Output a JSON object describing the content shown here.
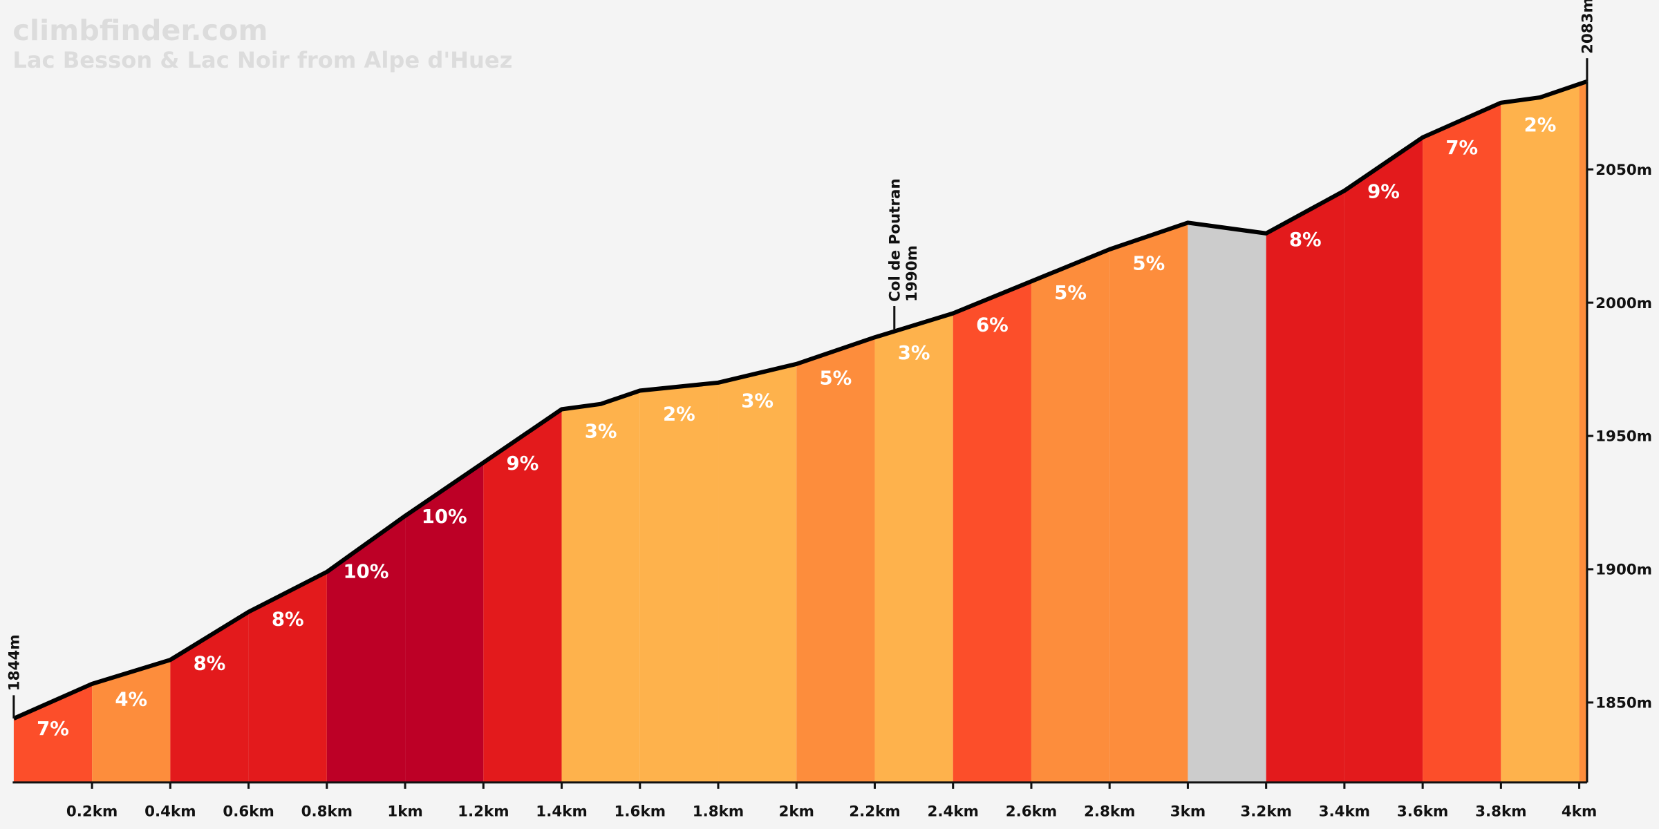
{
  "chart_data": {
    "type": "area",
    "title": "climbfinder.com",
    "subtitle": "Lac Besson & Lac Noir from Alpe d'Huez",
    "x": [
      0,
      0.2,
      0.4,
      0.6,
      0.8,
      1.0,
      1.2,
      1.4,
      1.5,
      1.6,
      1.8,
      2.0,
      2.2,
      2.4,
      2.6,
      2.8,
      3.0,
      3.2,
      3.4,
      3.6,
      3.8,
      3.9,
      4.02
    ],
    "elevations": [
      1844,
      1857,
      1866,
      1884,
      1899,
      1920,
      1940,
      1960,
      1962,
      1967,
      1970,
      1977,
      1987,
      1996,
      2008,
      2020,
      2030,
      2026,
      2042,
      2062,
      2075,
      2077,
      2083
    ],
    "segment_edges": [
      0,
      0.2,
      0.4,
      0.6,
      0.8,
      1.0,
      1.2,
      1.4,
      1.6,
      1.8,
      2.0,
      2.2,
      2.4,
      2.6,
      2.8,
      3.0,
      3.2,
      3.4,
      3.6,
      3.8,
      4.0,
      4.02
    ],
    "gradients": [
      7,
      4,
      8,
      8,
      10,
      10,
      9,
      3,
      2,
      3,
      5,
      3,
      6,
      5,
      5,
      -2,
      8,
      9,
      7,
      2,
      4
    ],
    "gradient_labels": [
      "7%",
      "4%",
      "8%",
      "8%",
      "10%",
      "10%",
      "9%",
      "3%",
      "2%",
      "3%",
      "5%",
      "3%",
      "6%",
      "5%",
      "5%",
      null,
      "8%",
      "9%",
      "7%",
      "2%",
      null
    ],
    "segment_colors": [
      "#fc4e2a",
      "#fd8d3c",
      "#e31a1c",
      "#e31a1c",
      "#bd0026",
      "#bd0026",
      "#e31a1c",
      "#feb24c",
      "#feb24c",
      "#feb24c",
      "#fd8d3c",
      "#feb24c",
      "#fc4e2a",
      "#fd8d3c",
      "#fd8d3c",
      "#cccccc",
      "#e31a1c",
      "#e31a1c",
      "#fc4e2a",
      "#feb24c",
      "#fd8d3c"
    ],
    "line_color": "#000000",
    "xlim": [
      0,
      4.02
    ],
    "ylim": [
      1820,
      2083
    ],
    "xticks": [
      {
        "value": 0.2,
        "label": "0.2km"
      },
      {
        "value": 0.4,
        "label": "0.4km"
      },
      {
        "value": 0.6,
        "label": "0.6km"
      },
      {
        "value": 0.8,
        "label": "0.8km"
      },
      {
        "value": 1,
        "label": "1km"
      },
      {
        "value": 1.2,
        "label": "1.2km"
      },
      {
        "value": 1.4,
        "label": "1.4km"
      },
      {
        "value": 1.6,
        "label": "1.6km"
      },
      {
        "value": 1.8,
        "label": "1.8km"
      },
      {
        "value": 2,
        "label": "2km"
      },
      {
        "value": 2.2,
        "label": "2.2km"
      },
      {
        "value": 2.4,
        "label": "2.4km"
      },
      {
        "value": 2.6,
        "label": "2.6km"
      },
      {
        "value": 2.8,
        "label": "2.8km"
      },
      {
        "value": 3,
        "label": "3km"
      },
      {
        "value": 3.2,
        "label": "3.2km"
      },
      {
        "value": 3.4,
        "label": "3.4km"
      },
      {
        "value": 3.6,
        "label": "3.6km"
      },
      {
        "value": 3.8,
        "label": "3.8km"
      },
      {
        "value": 4,
        "label": "4km"
      }
    ],
    "yticks": [
      {
        "value": 1850,
        "label": "1850m"
      },
      {
        "value": 1900,
        "label": "1900m"
      },
      {
        "value": 1950,
        "label": "1950m"
      },
      {
        "value": 2000,
        "label": "2000m"
      },
      {
        "value": 2050,
        "label": "2050m"
      }
    ],
    "annotations": [
      {
        "x": 0,
        "value": 1844,
        "label": "1844m"
      },
      {
        "x": 4.02,
        "value": 2083,
        "label": "2083m"
      },
      {
        "x": 2.25,
        "value": 1990,
        "name": "Col de Poutran",
        "label": "1990m"
      }
    ]
  }
}
